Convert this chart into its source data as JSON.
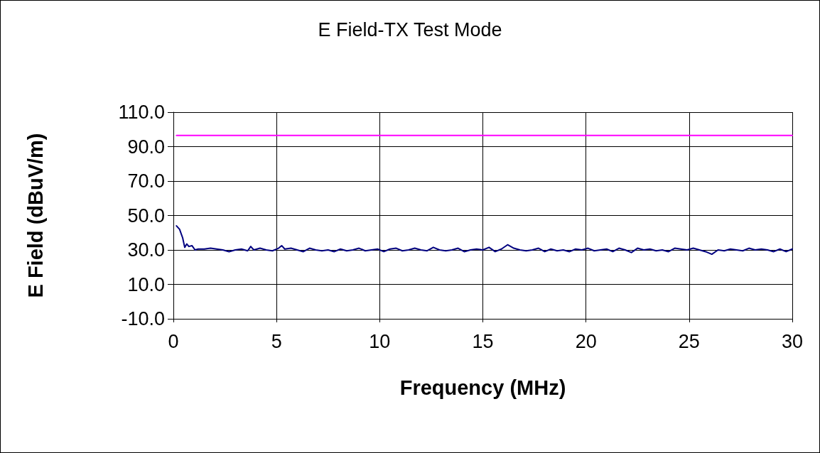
{
  "chart_data": {
    "type": "line",
    "title": "E Field-TX Test Mode",
    "xlabel": "Frequency (MHz)",
    "ylabel": "E Field (dBuV/m)",
    "xlim": [
      0,
      30
    ],
    "xticks": [
      0,
      5,
      10,
      15,
      20,
      25,
      30
    ],
    "ylim": [
      -10,
      110
    ],
    "yticks": [
      {
        "value": -10,
        "label": "-10.0"
      },
      {
        "value": 10,
        "label": "10.0"
      },
      {
        "value": 30,
        "label": "30.0"
      },
      {
        "value": 50,
        "label": "50.0"
      },
      {
        "value": 70,
        "label": "70.0"
      },
      {
        "value": 90,
        "label": "90.0"
      },
      {
        "value": 110,
        "label": "110.0"
      }
    ],
    "grid": true,
    "marker": "none",
    "line_style": "solid",
    "series": [
      {
        "color": "#000080",
        "x": [
          0.15,
          0.3,
          0.45,
          0.55,
          0.65,
          0.75,
          0.9,
          1.05,
          1.2,
          1.5,
          1.8,
          2.1,
          2.4,
          2.7,
          3.0,
          3.3,
          3.6,
          3.75,
          3.9,
          4.2,
          4.5,
          4.8,
          5.1,
          5.25,
          5.4,
          5.7,
          6.0,
          6.3,
          6.6,
          6.9,
          7.2,
          7.5,
          7.8,
          8.1,
          8.4,
          8.7,
          9.0,
          9.3,
          9.6,
          9.9,
          10.2,
          10.5,
          10.8,
          11.1,
          11.4,
          11.7,
          12.0,
          12.3,
          12.6,
          12.9,
          13.2,
          13.5,
          13.8,
          14.1,
          14.4,
          14.7,
          15.0,
          15.3,
          15.6,
          15.9,
          16.2,
          16.5,
          16.8,
          17.1,
          17.4,
          17.7,
          18.0,
          18.3,
          18.6,
          18.9,
          19.2,
          19.5,
          19.8,
          20.1,
          20.4,
          20.7,
          21.0,
          21.3,
          21.6,
          21.9,
          22.2,
          22.5,
          22.8,
          23.1,
          23.4,
          23.7,
          24.0,
          24.3,
          24.6,
          24.9,
          25.2,
          25.5,
          25.8,
          26.1,
          26.4,
          26.7,
          27.0,
          27.3,
          27.6,
          27.9,
          28.2,
          28.5,
          28.8,
          29.1,
          29.4,
          29.7,
          30.0
        ],
        "values": [
          44,
          42,
          37,
          31.5,
          33.5,
          32,
          32.5,
          30,
          30.5,
          30.5,
          31,
          30.5,
          30,
          29,
          30,
          30.5,
          29.5,
          32,
          30,
          31,
          30,
          29.5,
          31,
          32.5,
          30.5,
          31,
          30,
          29,
          31,
          30,
          29.5,
          30,
          29,
          30.5,
          29.5,
          30,
          31,
          29.5,
          30,
          30.5,
          29,
          30.5,
          31,
          29.5,
          30,
          31,
          30,
          29.5,
          31.5,
          30,
          29.5,
          30,
          31,
          29,
          30,
          30.5,
          30,
          31.5,
          29,
          30.5,
          33,
          31,
          30,
          29.5,
          30,
          31,
          29,
          30.5,
          29.5,
          30,
          29,
          30.5,
          30,
          31,
          29.5,
          30,
          30.5,
          29,
          31,
          30,
          28.5,
          31,
          30,
          30.5,
          29.5,
          30,
          29,
          31,
          30.5,
          30,
          31,
          30,
          29,
          27.5,
          30,
          29.5,
          30.5,
          30,
          29.5,
          31,
          30,
          30.5,
          30,
          29,
          30.5,
          29,
          30.5
        ]
      },
      {
        "color": "#ff00ff",
        "x": [
          0.15,
          30
        ],
        "values": [
          96.5,
          96.5
        ]
      }
    ]
  }
}
